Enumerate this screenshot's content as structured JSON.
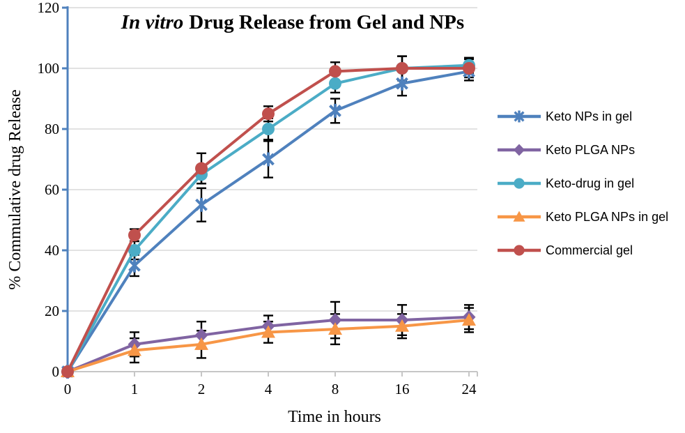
{
  "title": {
    "italic": "In vitro",
    "rest": "Drug Release from Gel and NPs"
  },
  "chart_data": {
    "type": "line",
    "x_categories": [
      "0",
      "1",
      "2",
      "4",
      "8",
      "16",
      "24"
    ],
    "xlabel": "Time in hours",
    "ylabel": "% Commulative drug Release",
    "ylim": [
      0,
      120
    ],
    "ytick_step": 20,
    "grid": true,
    "legend_position": "right",
    "error_bars": true,
    "series": [
      {
        "name": "Keto NPs in gel",
        "color": "#4F81BD",
        "marker": "star",
        "values": [
          0,
          35,
          55,
          70,
          86,
          95,
          99
        ],
        "errors": [
          0,
          3.5,
          5.5,
          6,
          4,
          4,
          3
        ]
      },
      {
        "name": "Keto PLGA NPs",
        "color": "#8064A2",
        "marker": "diamond",
        "values": [
          0,
          9,
          12,
          15,
          17,
          17,
          18
        ],
        "errors": [
          0,
          4,
          4.5,
          3.5,
          6,
          5,
          4
        ]
      },
      {
        "name": "Keto-drug in gel",
        "color": "#4BACC6",
        "marker": "circle",
        "values": [
          0,
          40,
          65,
          80,
          95,
          100,
          101
        ],
        "errors": [
          0,
          3,
          3,
          3.5,
          3,
          4,
          2.5
        ]
      },
      {
        "name": "Keto PLGA NPs in gel",
        "color": "#F79646",
        "marker": "triangle",
        "values": [
          0,
          7,
          9,
          13,
          14,
          15,
          17
        ],
        "errors": [
          0,
          4,
          4.5,
          3.5,
          5,
          4,
          4
        ]
      },
      {
        "name": "Commercial gel",
        "color": "#C0504D",
        "marker": "circle",
        "values": [
          0,
          45,
          67,
          85,
          99,
          100,
          100
        ],
        "errors": [
          0,
          2,
          5,
          2.5,
          3,
          4,
          3
        ]
      }
    ],
    "colors": {
      "gridline": "#D9D9D9",
      "x_axis": "#C6C6C6",
      "y_axis": "#4F81BD",
      "error_bar": "#000000",
      "text": "#000000",
      "background": "#FFFFFF"
    }
  }
}
